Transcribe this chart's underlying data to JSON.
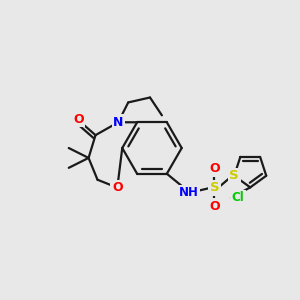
{
  "background_color": "#e8e8e8",
  "bond_color": "#1a1a1a",
  "atom_colors": {
    "N": "#0000ff",
    "O": "#ff0000",
    "S": "#cccc00",
    "Cl": "#00cc00"
  },
  "figsize": [
    3.0,
    3.0
  ],
  "dpi": 100
}
